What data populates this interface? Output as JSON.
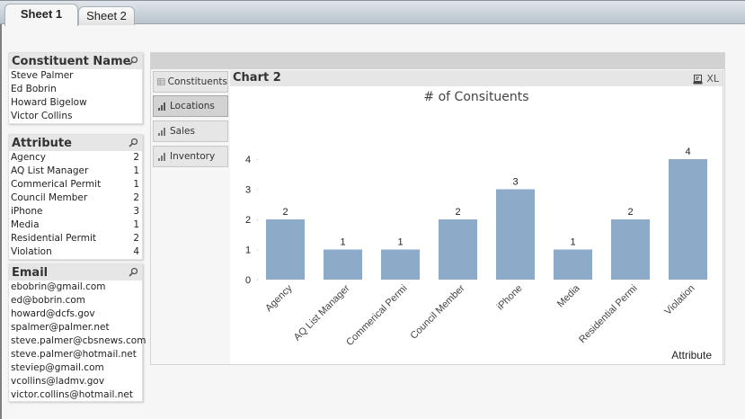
{
  "sheet_tabs": [
    {
      "label": "Sheet 1",
      "active": true
    },
    {
      "label": "Sheet 2",
      "active": false
    }
  ],
  "listboxes": {
    "constituent_name": {
      "title": "Constituent Name",
      "items": [
        "Steve Palmer",
        "Ed Bobrin",
        "Howard Bigelow",
        "Victor Collins"
      ]
    },
    "attribute": {
      "title": "Attribute",
      "items": [
        {
          "label": "Agency",
          "count": "2"
        },
        {
          "label": "AQ List Manager",
          "count": "1"
        },
        {
          "label": "Commerical Permit",
          "count": "1"
        },
        {
          "label": "Council Member",
          "count": "2"
        },
        {
          "label": "iPhone",
          "count": "3"
        },
        {
          "label": "Media",
          "count": "1"
        },
        {
          "label": "Residential Permit",
          "count": "2"
        },
        {
          "label": "Violation",
          "count": "4"
        }
      ]
    },
    "email": {
      "title": "Email",
      "items": [
        "ebobrin@gmail.com",
        "ed@bobrin.com",
        "howard@dcfs.gov",
        "spalmer@palmer.net",
        "steve.palmer@cbsnews.com",
        "steve.palmer@hotmail.net",
        "steviep@gmail.com",
        "vcollins@ladmv.gov",
        "victor.collins@hotmail.net"
      ]
    }
  },
  "container_tabs": [
    {
      "label": "Constituents",
      "icon": "table-icon",
      "active": false
    },
    {
      "label": "Locations",
      "icon": "bar-chart-icon",
      "active": true
    },
    {
      "label": "Sales",
      "icon": "bar-chart-icon",
      "active": false
    },
    {
      "label": "Inventory",
      "icon": "bar-chart-icon",
      "active": false
    }
  ],
  "chart_object": {
    "caption": "Chart 2",
    "print_icon": "printer-icon",
    "xl_label": "XL"
  },
  "colors": {
    "bar": "#8eaac9"
  },
  "chart_data": {
    "type": "bar",
    "title": "# of Consituents",
    "xlabel": "Attribute",
    "ylabel": "",
    "categories": [
      "Agency",
      "AQ List Manager",
      "Commerical Permit",
      "Council Member",
      "iPhone",
      "Media",
      "Residential Permit",
      "Violation"
    ],
    "tick_labels_visible": [
      "Agency",
      "AQ List Manager",
      "Commerical Permi",
      "Council Member",
      "iPhone",
      "Media",
      "Residential Permi",
      "Violation"
    ],
    "values": [
      2,
      1,
      1,
      2,
      3,
      1,
      2,
      4
    ],
    "data_labels": [
      "2",
      "1",
      "1",
      "2",
      "3",
      "1",
      "2",
      "4"
    ],
    "yticks": [
      "0",
      "1",
      "2",
      "3",
      "4"
    ],
    "ylim": [
      0,
      4
    ],
    "grid": false,
    "legend": "none"
  }
}
